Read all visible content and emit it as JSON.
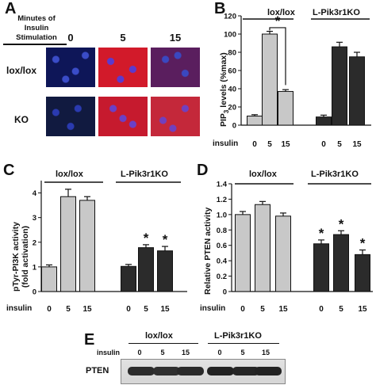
{
  "panels": {
    "A": {
      "label": "A",
      "header": [
        "Minutes of",
        "Insulin",
        "Stimulation"
      ],
      "times": [
        "0",
        "5",
        "15"
      ],
      "rows": [
        "lox/lox",
        "KO"
      ]
    },
    "E": {
      "label": "E",
      "groups": [
        "lox/lox",
        "L-Pik3r1KO"
      ],
      "insulin_label": "insulin",
      "times": [
        "0",
        "5",
        "15",
        "0",
        "5",
        "15"
      ],
      "blot_label": "PTEN"
    }
  },
  "chart_data": [
    {
      "panel": "B",
      "type": "bar",
      "ylabel": "PIP3 levels (%max)",
      "ylabel_main": "PIP",
      "ylabel_sub": "3",
      "ylabel_rest": " levels (%max)",
      "xlabel": "insulin",
      "groups": [
        "lox/lox",
        "L-Pik3r1KO"
      ],
      "categories": [
        "0",
        "5",
        "15",
        "0",
        "5",
        "15"
      ],
      "values": [
        10,
        100,
        37,
        9,
        86,
        75
      ],
      "errors": [
        1.5,
        3,
        2,
        2,
        5,
        5
      ],
      "colors": [
        "#c8c8c8",
        "#c8c8c8",
        "#c8c8c8",
        "#2b2b2b",
        "#2b2b2b",
        "#2b2b2b"
      ],
      "ylim": [
        0,
        120
      ],
      "yticks": [
        "0",
        "20",
        "40",
        "60",
        "80",
        "100",
        "120"
      ],
      "significance": "*"
    },
    {
      "panel": "C",
      "type": "bar",
      "ylabel": "pTyr-PI3K activity",
      "ylabel2": "(fold activation)",
      "xlabel": "insulin",
      "groups": [
        "lox/lox",
        "L-Pik3r1KO"
      ],
      "categories": [
        "0",
        "5",
        "15",
        "0",
        "5",
        "15"
      ],
      "values": [
        1.0,
        3.85,
        3.7,
        1.02,
        1.78,
        1.65
      ],
      "errors": [
        0.08,
        0.3,
        0.15,
        0.08,
        0.12,
        0.18
      ],
      "colors": [
        "#c8c8c8",
        "#c8c8c8",
        "#c8c8c8",
        "#2b2b2b",
        "#2b2b2b",
        "#2b2b2b"
      ],
      "ylim": [
        0,
        4.5
      ],
      "yticks": [
        "0",
        "1",
        "2",
        "3",
        "4"
      ],
      "stars": [
        "",
        "",
        "",
        "",
        "*",
        "*"
      ]
    },
    {
      "panel": "D",
      "type": "bar",
      "ylabel": "Relative PTEN activity",
      "xlabel": "insulin",
      "groups": [
        "lox/lox",
        "L-Pik3r1KO"
      ],
      "categories": [
        "0",
        "5",
        "15",
        "0",
        "5",
        "15"
      ],
      "values": [
        1.0,
        1.13,
        0.98,
        0.62,
        0.74,
        0.48
      ],
      "errors": [
        0.04,
        0.04,
        0.04,
        0.05,
        0.05,
        0.06
      ],
      "colors": [
        "#c8c8c8",
        "#c8c8c8",
        "#c8c8c8",
        "#2b2b2b",
        "#2b2b2b",
        "#2b2b2b"
      ],
      "ylim": [
        0,
        1.4
      ],
      "yticks": [
        "0",
        "0.2",
        "0.4",
        "0.6",
        "0.8",
        "1.0",
        "1.2",
        "1.4"
      ],
      "stars": [
        "",
        "",
        "",
        "*",
        "*",
        "*"
      ]
    }
  ]
}
